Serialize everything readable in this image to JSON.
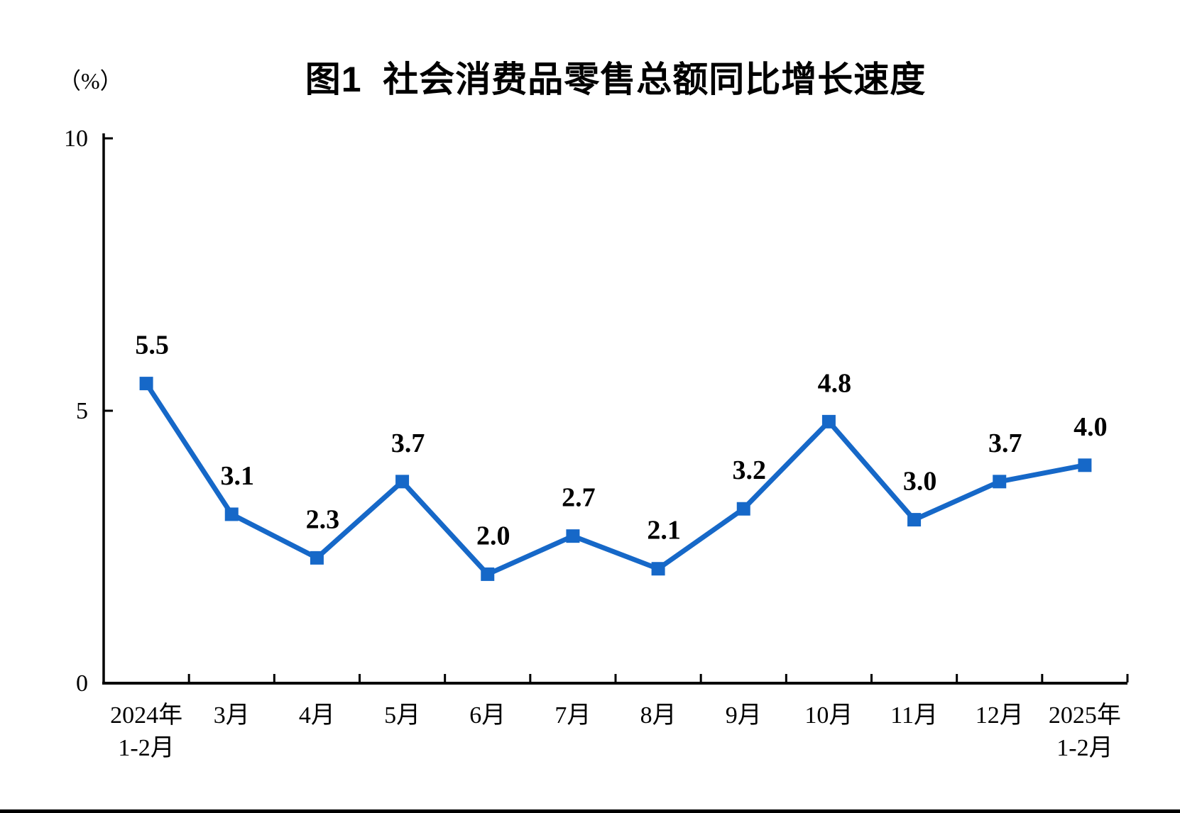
{
  "chart_data": {
    "type": "line",
    "title": "图1  社会消费品零售总额同比增长速度",
    "unit_label": "（%）",
    "categories": [
      "2024年\n1-2月",
      "3月",
      "4月",
      "5月",
      "6月",
      "7月",
      "8月",
      "9月",
      "10月",
      "11月",
      "12月",
      "2025年\n1-2月"
    ],
    "values": [
      5.5,
      3.1,
      2.3,
      3.7,
      2.0,
      2.7,
      2.1,
      3.2,
      4.8,
      3.0,
      3.7,
      4.0
    ],
    "data_labels": [
      "5.5",
      "3.1",
      "2.3",
      "3.7",
      "2.0",
      "2.7",
      "2.1",
      "3.2",
      "4.8",
      "3.0",
      "3.7",
      "4.0"
    ],
    "xlabel": "",
    "ylabel": "（%）",
    "ylim": [
      0,
      10
    ],
    "y_ticks": [
      0,
      5,
      10
    ],
    "grid": false,
    "legend_position": "none",
    "marker": "square",
    "line_color": "#1668c8",
    "marker_color": "#1668c8",
    "axis_color": "#000000",
    "label_color": "#000000"
  }
}
